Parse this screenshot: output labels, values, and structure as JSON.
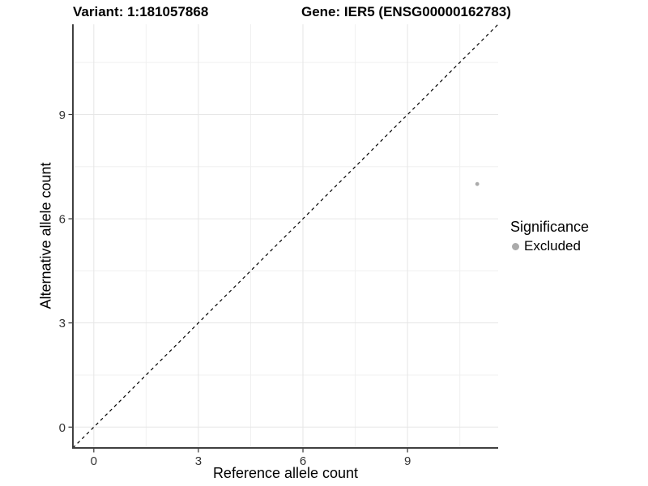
{
  "titles": {
    "variant": "Variant: 1:181057868",
    "gene": "Gene: IER5 (ENSG00000162783)"
  },
  "chart_data": {
    "type": "scatter",
    "title_left": "Variant: 1:181057868",
    "title_right": "Gene: IER5 (ENSG00000162783)",
    "xlabel": "Reference allele count",
    "ylabel": "Alternative allele count",
    "xlim": [
      -0.6,
      11.6
    ],
    "ylim": [
      -0.6,
      11.6
    ],
    "xticks": [
      0,
      3,
      6,
      9
    ],
    "yticks": [
      0,
      3,
      6,
      9
    ],
    "minor_breaks": [
      1.5,
      4.5,
      7.5,
      10.5
    ],
    "grid": "major+minor",
    "identity_line": {
      "style": "dashed",
      "color": "#000000",
      "from": [
        -0.6,
        -0.6
      ],
      "to": [
        11.6,
        11.6
      ]
    },
    "points": [
      {
        "x": 11,
        "y": 7,
        "series": "Excluded"
      }
    ],
    "legend": {
      "title": "Significance",
      "position": "right",
      "items": [
        {
          "label": "Excluded",
          "color": "#ababab"
        }
      ]
    },
    "colors": {
      "point": "#ababab",
      "grid_major": "#e6e6e6",
      "grid_minor": "#f0f0f0",
      "axis_line": "#404040",
      "tick_mark": "#333333",
      "tick_text": "#333333",
      "background": "#ffffff"
    }
  }
}
